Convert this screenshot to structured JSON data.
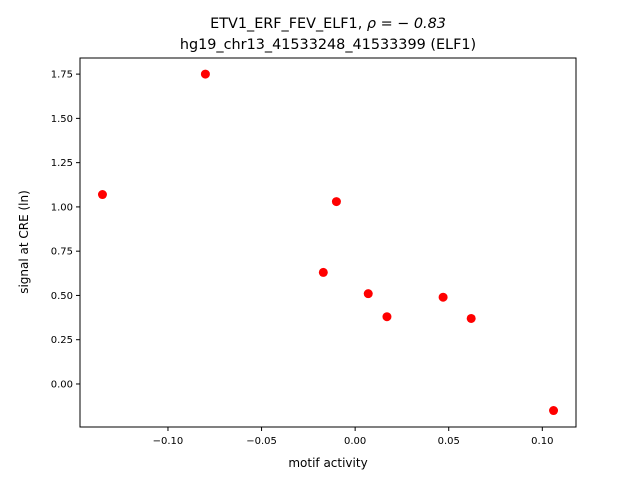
{
  "chart_data": {
    "type": "scatter",
    "title_line1_prefix": "ETV1_ERF_FEV_ELF1, ",
    "title_line1_rho": "ρ = − 0.83",
    "title_line2": "hg19_chr13_41533248_41533399 (ELF1)",
    "xlabel": "motif activity",
    "ylabel": "signal at CRE (ln)",
    "xlim": [
      -0.147,
      0.118
    ],
    "ylim": [
      -0.243,
      1.841
    ],
    "xticks": [
      -0.1,
      -0.05,
      0.0,
      0.05,
      0.1
    ],
    "xtick_labels": [
      "−0.10",
      "−0.05",
      "0.00",
      "0.05",
      "0.10"
    ],
    "yticks": [
      0.0,
      0.25,
      0.5,
      0.75,
      1.0,
      1.25,
      1.5,
      1.75
    ],
    "ytick_labels": [
      "0.00",
      "0.25",
      "0.50",
      "0.75",
      "1.00",
      "1.25",
      "1.50",
      "1.75"
    ],
    "grid": false,
    "marker_color": "#ff0000",
    "points": [
      {
        "x": -0.135,
        "y": 1.07
      },
      {
        "x": -0.08,
        "y": 1.75
      },
      {
        "x": -0.01,
        "y": 1.03
      },
      {
        "x": -0.017,
        "y": 0.63
      },
      {
        "x": 0.007,
        "y": 0.51
      },
      {
        "x": 0.017,
        "y": 0.38
      },
      {
        "x": 0.047,
        "y": 0.49
      },
      {
        "x": 0.062,
        "y": 0.37
      },
      {
        "x": 0.106,
        "y": -0.15
      }
    ]
  }
}
